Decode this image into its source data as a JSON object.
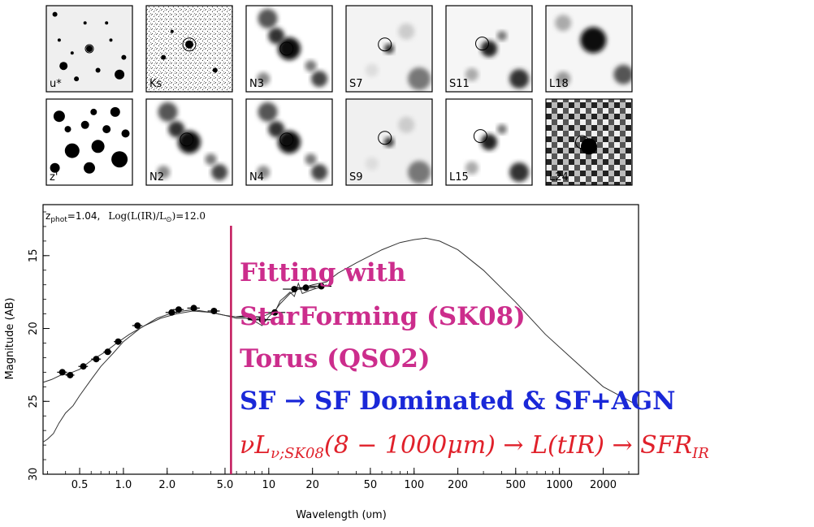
{
  "thumbnails": {
    "row1": [
      "u*",
      "Ks",
      "N3",
      "S7",
      "S11",
      "L18"
    ],
    "row2": [
      "z'",
      "N2",
      "N4",
      "S9",
      "L15",
      "L24"
    ]
  },
  "chart_data": {
    "type": "scatter",
    "title_line": "z_phot=1.04, Log(L(IR)/L_sun)=12.0",
    "title_parts": {
      "z_label": "z",
      "z_sub": "phot",
      "z_value": "=1.04,",
      "log_label": "Log(L(IR)/L",
      "log_sub": "⊙",
      "log_value": ")=12.0"
    },
    "xlabel": "Wavelength (υm)",
    "ylabel": "Magnitude (AB)",
    "xscale": "log",
    "xlim": [
      0.28,
      3500
    ],
    "ylim": [
      30,
      11.5
    ],
    "y_inverted": true,
    "x_ticks": [
      0.5,
      1.0,
      2.0,
      5.0,
      10,
      20,
      50,
      100,
      200,
      500,
      1000,
      2000
    ],
    "x_tick_labels": [
      "0.5",
      "1.0",
      "2.0",
      "5.0",
      "10",
      "20",
      "50",
      "100",
      "200",
      "500",
      "1000",
      "2000"
    ],
    "y_ticks": [
      15,
      20,
      25,
      30
    ],
    "y_tick_labels": [
      "15",
      "20",
      "25",
      "30"
    ],
    "points": [
      {
        "x": 0.38,
        "y": 23.0,
        "xerr": 0.03
      },
      {
        "x": 0.43,
        "y": 23.2,
        "xerr": 0.03
      },
      {
        "x": 0.53,
        "y": 22.6,
        "xerr": 0.04
      },
      {
        "x": 0.65,
        "y": 22.1,
        "xerr": 0.05
      },
      {
        "x": 0.78,
        "y": 21.6,
        "xerr": 0.05
      },
      {
        "x": 0.92,
        "y": 20.9,
        "xerr": 0.06
      },
      {
        "x": 1.25,
        "y": 19.8,
        "xerr": 0.1
      },
      {
        "x": 2.15,
        "y": 18.9,
        "xerr": 0.2
      },
      {
        "x": 2.4,
        "y": 18.7,
        "xerr": 0.2
      },
      {
        "x": 3.05,
        "y": 18.6,
        "xerr": 0.3
      },
      {
        "x": 4.2,
        "y": 18.8,
        "xerr": 0.4
      },
      {
        "x": 7.5,
        "y": 19.2,
        "xerr": 1.5
      },
      {
        "x": 9.0,
        "y": 19.4,
        "xerr": 1.8
      },
      {
        "x": 11.0,
        "y": 18.9,
        "xerr": 2.0
      },
      {
        "x": 15.0,
        "y": 17.3,
        "xerr": 2.5
      },
      {
        "x": 18.0,
        "y": 17.2,
        "xerr": 3.0
      },
      {
        "x": 23.0,
        "y": 17.1,
        "xerr": 4.0
      }
    ],
    "model_curves": [
      {
        "name": "",
        "points": [
          [
            0.28,
            27.8
          ],
          [
            0.3,
            27.6
          ],
          [
            0.33,
            27.2
          ],
          [
            0.36,
            26.5
          ],
          [
            0.4,
            25.8
          ],
          [
            0.45,
            25.3
          ],
          [
            0.5,
            24.6
          ],
          [
            0.6,
            23.5
          ],
          [
            0.7,
            22.6
          ],
          [
            0.85,
            21.7
          ],
          [
            1.0,
            20.9
          ],
          [
            1.3,
            20.0
          ],
          [
            1.7,
            19.3
          ],
          [
            2.2,
            18.9
          ],
          [
            3.0,
            18.7
          ],
          [
            4.0,
            18.9
          ],
          [
            5.0,
            19.1
          ],
          [
            6.0,
            19.3
          ],
          [
            7.0,
            19.3
          ],
          [
            8.0,
            19.5
          ],
          [
            9.0,
            19.8
          ],
          [
            10.0,
            19.2
          ],
          [
            11.0,
            18.8
          ],
          [
            12.0,
            18.3
          ],
          [
            14.0,
            17.6
          ],
          [
            16.0,
            17.3
          ],
          [
            20.0,
            17.0
          ],
          [
            25.0,
            16.8
          ],
          [
            30.0,
            16.2
          ],
          [
            40.0,
            15.5
          ],
          [
            60.0,
            14.6
          ],
          [
            80.0,
            14.1
          ],
          [
            100.0,
            13.9
          ],
          [
            120.0,
            13.8
          ],
          [
            150.0,
            14.0
          ],
          [
            200.0,
            14.6
          ],
          [
            300.0,
            16.0
          ],
          [
            500.0,
            18.2
          ],
          [
            800.0,
            20.4
          ],
          [
            1200.0,
            22.0
          ],
          [
            2000.0,
            24.0
          ],
          [
            3500.0,
            25.3
          ]
        ]
      },
      {
        "name": "",
        "points": [
          [
            0.28,
            23.7
          ],
          [
            0.32,
            23.5
          ],
          [
            0.37,
            23.2
          ],
          [
            0.42,
            23.1
          ],
          [
            0.5,
            22.8
          ],
          [
            0.6,
            22.2
          ],
          [
            0.75,
            21.6
          ],
          [
            0.9,
            21.0
          ],
          [
            1.1,
            20.4
          ],
          [
            1.4,
            19.8
          ],
          [
            1.8,
            19.3
          ],
          [
            2.3,
            19.0
          ],
          [
            3.0,
            18.8
          ],
          [
            4.0,
            18.9
          ],
          [
            5.0,
            19.1
          ],
          [
            6.0,
            19.2
          ],
          [
            7.0,
            19.1
          ],
          [
            8.0,
            19.4
          ],
          [
            9.0,
            19.2
          ],
          [
            10.0,
            19.0
          ],
          [
            11.0,
            18.9
          ],
          [
            12.0,
            18.1
          ],
          [
            13.0,
            17.8
          ],
          [
            14.0,
            17.5
          ],
          [
            15.0,
            17.8
          ],
          [
            16.0,
            16.9
          ],
          [
            17.0,
            17.6
          ],
          [
            19.0,
            17.4
          ],
          [
            22.0,
            17.2
          ],
          [
            25.0,
            17.0
          ]
        ]
      }
    ],
    "vertical_marker_x": 5.5,
    "vertical_marker_color": "#c2185b",
    "annotations": {
      "line1": "Fitting with",
      "line2": "StarForming (SK08)",
      "line3": "Torus (QSO2)",
      "line4": "SF → SF Dominated & SF+AGN",
      "line5_main": "νL",
      "line5_sub": "ν;SK08",
      "line5_mid": "(8 − 1000μm) → L(tIR) → SFR",
      "line5_sub2": "IR"
    },
    "colors": {
      "magenta": "#cc2d8c",
      "blue": "#1a28d8",
      "red": "#e0202a"
    }
  }
}
